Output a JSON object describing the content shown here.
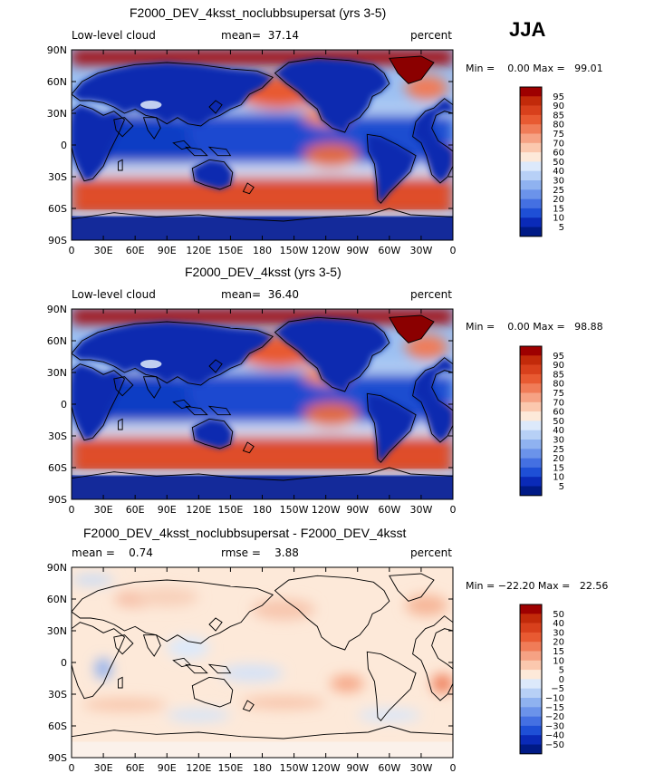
{
  "season": "JJA",
  "panels": [
    {
      "title": "F2000_DEV_4ksst_noclubbsupersat (yrs 3-5)",
      "left_label": "Low-level cloud",
      "stat1": "mean=  37.14",
      "stat2": "",
      "units": "percent",
      "minmax": "Min =    0.00 Max =   99.01",
      "type": "cloud"
    },
    {
      "title": "F2000_DEV_4ksst (yrs 3-5)",
      "left_label": "Low-level cloud",
      "stat1": "mean=  36.40",
      "stat2": "",
      "units": "percent",
      "minmax": "Min =    0.00 Max =   98.88",
      "type": "cloud"
    },
    {
      "title": "F2000_DEV_4ksst_noclubbsupersat - F2000_DEV_4ksst",
      "left_label": "",
      "stat1": "mean =    0.74",
      "stat2": "rmse =    3.88",
      "units": "percent",
      "minmax": "Min = −22.20 Max =   22.56",
      "type": "diff"
    }
  ],
  "lat_labels": [
    "90N",
    "60N",
    "30N",
    "0",
    "30S",
    "60S",
    "90S"
  ],
  "lon_labels": [
    "0",
    "30E",
    "60E",
    "90E",
    "120E",
    "150E",
    "180",
    "150W",
    "120W",
    "90W",
    "60W",
    "30W",
    "0"
  ],
  "cloud_scale": {
    "labels": [
      "95",
      "90",
      "85",
      "80",
      "75",
      "70",
      "60",
      "50",
      "40",
      "30",
      "25",
      "20",
      "15",
      "10",
      "5"
    ],
    "colors": [
      "#9e0000",
      "#c22a0a",
      "#d8401c",
      "#e85a32",
      "#f07c58",
      "#f6a284",
      "#fbc8ae",
      "#fde9d9",
      "#dce9fb",
      "#b7d0f6",
      "#8fb2f0",
      "#6b93ea",
      "#4470e2",
      "#1e4fd6",
      "#0a2ab8",
      "#001a86"
    ]
  },
  "diff_scale": {
    "labels": [
      "50",
      "40",
      "30",
      "20",
      "15",
      "10",
      "5",
      "0",
      "−5",
      "−10",
      "−15",
      "−20",
      "−30",
      "−40",
      "−50"
    ],
    "colors": [
      "#9e0000",
      "#c22a0a",
      "#d8401c",
      "#e85a32",
      "#f07c58",
      "#f6a284",
      "#fbc8ae",
      "#fde9d9",
      "#dce9fb",
      "#b7d0f6",
      "#8fb2f0",
      "#6b93ea",
      "#4470e2",
      "#1e4fd6",
      "#0a2ab8",
      "#001a86"
    ]
  },
  "map_colors": {
    "ocean_low": "#1a46c8",
    "ocean_mid": "#dce9fb",
    "stratocu": "#e85a32",
    "southern_belt": "#d8401c",
    "arctic": "#a00000",
    "antarctic": "#142a9a",
    "land": "#0a2aa8",
    "diff_base": "#fde9d9",
    "coast": "#000000"
  }
}
